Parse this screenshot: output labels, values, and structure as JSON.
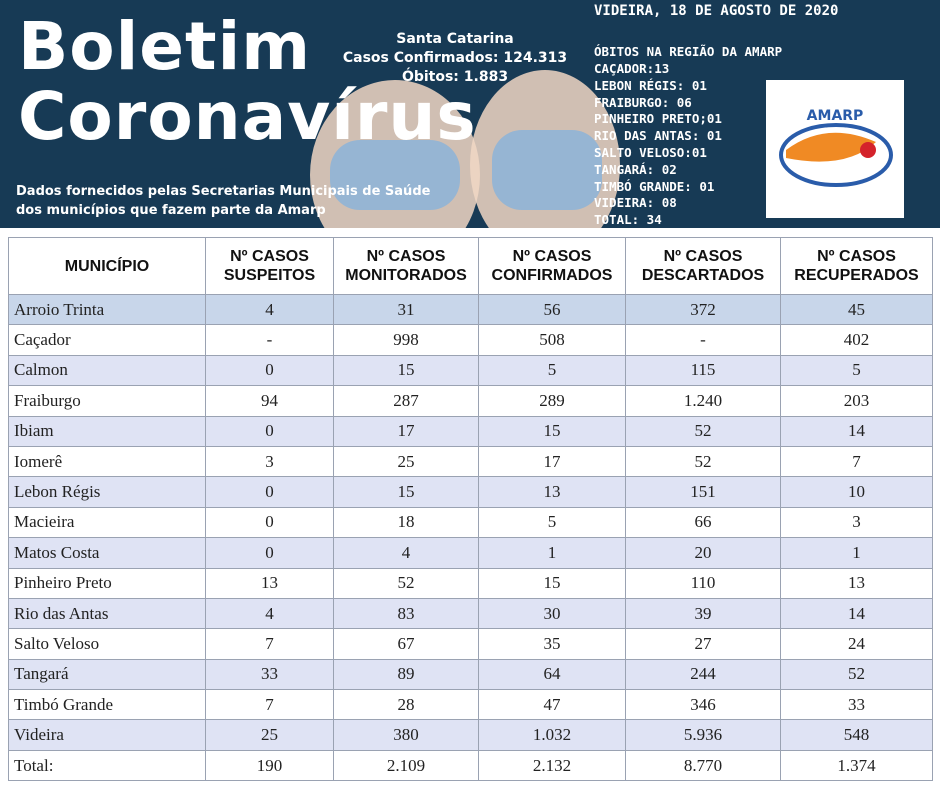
{
  "header": {
    "title_line1": "Boletim",
    "title_line2": "Coronavírus",
    "state": "Santa Catarina",
    "confirmed": "Casos Confirmados: 124.313",
    "deaths": "Óbitos:  1.883",
    "date": "VIDEIRA, 18 DE AGOSTO DE 2020",
    "region_title": "ÓBITOS NA REGIÃO DA AMARP",
    "region_deaths": [
      "CAÇADOR:13",
      "LEBON RÉGIS: 01",
      "FRAIBURGO: 06",
      "PINHEIRO PRETO;01",
      "RIO DAS ANTAS: 01",
      "SALTO VELOSO:01",
      "TANGARÁ: 02",
      "TIMBÓ GRANDE: 01",
      "VIDEIRA: 08",
      "TOTAL: 34"
    ],
    "source_line1": "Dados fornecidos pelas Secretarias Municipais de Saúde",
    "source_line2": "dos municípios que fazem parte da Amarp",
    "logo": "AMARP"
  },
  "table": {
    "columns": [
      [
        "MUNICÍPIO"
      ],
      [
        "Nº CASOS",
        "SUSPEITOS"
      ],
      [
        "Nº CASOS",
        "MONITORADOS"
      ],
      [
        "Nº CASOS",
        "CONFIRMADOS"
      ],
      [
        "Nº CASOS",
        "DESCARTADOS"
      ],
      [
        "Nº CASOS",
        "RECUPERADOS"
      ]
    ],
    "rows": [
      [
        "Arroio Trinta",
        "4",
        "31",
        "56",
        "372",
        "45"
      ],
      [
        "Caçador",
        "-",
        "998",
        "508",
        "-",
        "402"
      ],
      [
        "Calmon",
        "0",
        "15",
        "5",
        "115",
        "5"
      ],
      [
        "Fraiburgo",
        "94",
        "287",
        "289",
        "1.240",
        "203"
      ],
      [
        "Ibiam",
        "0",
        "17",
        "15",
        "52",
        "14"
      ],
      [
        "Iomerê",
        "3",
        "25",
        "17",
        "52",
        "7"
      ],
      [
        "Lebon Régis",
        "0",
        "15",
        "13",
        "151",
        "10"
      ],
      [
        "Macieira",
        "0",
        "18",
        "5",
        "66",
        "3"
      ],
      [
        "Matos Costa",
        "0",
        "4",
        "1",
        "20",
        "1"
      ],
      [
        "Pinheiro Preto",
        "13",
        "52",
        "15",
        "110",
        "13"
      ],
      [
        "Rio das Antas",
        "4",
        "83",
        "30",
        "39",
        "14"
      ],
      [
        "Salto Veloso",
        "7",
        "67",
        "35",
        "27",
        "24"
      ],
      [
        "Tangará",
        "33",
        "89",
        "64",
        "244",
        "52"
      ],
      [
        "Timbó Grande",
        "7",
        "28",
        "47",
        "346",
        "33"
      ],
      [
        "Videira",
        "25",
        "380",
        "1.032",
        "5.936",
        "548"
      ],
      [
        "Total:",
        "190",
        "2.109",
        "2.132",
        "8.770",
        "1.374"
      ]
    ]
  }
}
